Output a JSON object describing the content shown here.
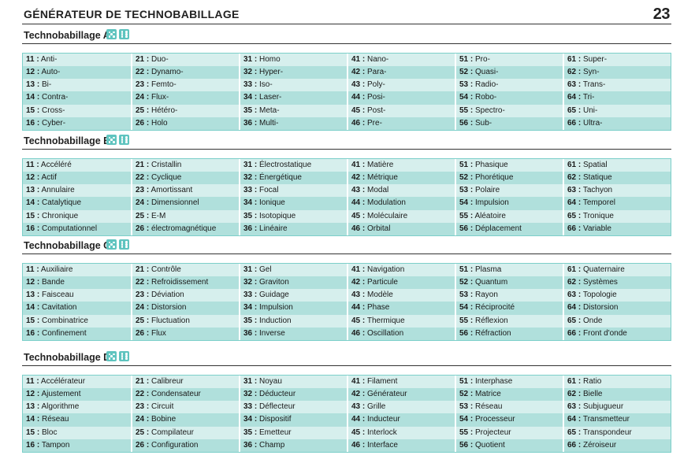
{
  "page": {
    "title": "GÉNÉRATEUR DE TECHNOBABILLAGE",
    "number": "23"
  },
  "colors": {
    "accent": "#5fc4bf",
    "row_light": "#d6efed",
    "row_dark": "#b0e0dc"
  },
  "sections": [
    {
      "title": "Technobabillage A",
      "dice_icon": "two-dice-icon",
      "columns": [
        [
          [
            "11 :",
            "Anti-"
          ],
          [
            "12 :",
            "Auto-"
          ],
          [
            "13 :",
            "Bi-"
          ],
          [
            "14 :",
            "Contra-"
          ],
          [
            "15 :",
            "Cross-"
          ],
          [
            "16 :",
            "Cyber-"
          ]
        ],
        [
          [
            "21 :",
            "Duo-"
          ],
          [
            "22 :",
            "Dynamo-"
          ],
          [
            "23 :",
            "Femto-"
          ],
          [
            "24 :",
            "Flux-"
          ],
          [
            "25 :",
            "Hétéro-"
          ],
          [
            "26 :",
            "Holo"
          ]
        ],
        [
          [
            "31 :",
            "Homo"
          ],
          [
            "32 :",
            "Hyper-"
          ],
          [
            "33 :",
            "Iso-"
          ],
          [
            "34 :",
            "Laser-"
          ],
          [
            "35 :",
            "Meta-"
          ],
          [
            "36 :",
            "Multi-"
          ]
        ],
        [
          [
            "41 :",
            "Nano-"
          ],
          [
            "42 :",
            "Para-"
          ],
          [
            "43 :",
            "Poly-"
          ],
          [
            "44 :",
            "Posi-"
          ],
          [
            "45 :",
            "Post-"
          ],
          [
            "46 :",
            "Pre-"
          ]
        ],
        [
          [
            "51 :",
            "Pro-"
          ],
          [
            "52 :",
            "Quasi-"
          ],
          [
            "53 :",
            "Radio-"
          ],
          [
            "54 :",
            "Robo-"
          ],
          [
            "55 :",
            "Spectro-"
          ],
          [
            "56 :",
            "Sub-"
          ]
        ],
        [
          [
            "61 :",
            "Super-"
          ],
          [
            "62 :",
            "Syn-"
          ],
          [
            "63 :",
            "Trans-"
          ],
          [
            "64 :",
            "Tri-"
          ],
          [
            "65 :",
            "Uni-"
          ],
          [
            "66 :",
            "Ultra-"
          ]
        ]
      ]
    },
    {
      "title": "Technobabillage B",
      "dice_icon": "two-dice-icon",
      "columns": [
        [
          [
            "11 :",
            "Accéléré"
          ],
          [
            "12 :",
            "Actif"
          ],
          [
            "13 :",
            "Annulaire"
          ],
          [
            "14 :",
            "Catalytique"
          ],
          [
            "15 :",
            "Chronique"
          ],
          [
            "16 :",
            "Computationnel"
          ]
        ],
        [
          [
            "21 :",
            "Cristallin"
          ],
          [
            "22 :",
            "Cyclique"
          ],
          [
            "23 :",
            "Amortissant"
          ],
          [
            "24 :",
            "Dimensionnel"
          ],
          [
            "25 :",
            "E-M"
          ],
          [
            "26 :",
            "électromagnétique"
          ]
        ],
        [
          [
            "31 :",
            "Électrostatique"
          ],
          [
            "32 :",
            "Énergétique"
          ],
          [
            "33 :",
            "Focal"
          ],
          [
            "34 :",
            "Ionique"
          ],
          [
            "35 :",
            "Isotopique"
          ],
          [
            "36 :",
            "Linéaire"
          ]
        ],
        [
          [
            "41 :",
            "Matière"
          ],
          [
            "42 :",
            "Métrique"
          ],
          [
            "43 :",
            "Modal"
          ],
          [
            "44 :",
            "Modulation"
          ],
          [
            "45 :",
            "Moléculaire"
          ],
          [
            "46 :",
            "Orbital"
          ]
        ],
        [
          [
            "51 :",
            "Phasique"
          ],
          [
            "52 :",
            "Phorétique"
          ],
          [
            "53 :",
            "Polaire"
          ],
          [
            "54 :",
            "Impulsion"
          ],
          [
            "55 :",
            "Aléatoire"
          ],
          [
            "56 :",
            "Déplacement"
          ]
        ],
        [
          [
            "61 :",
            "Spatial"
          ],
          [
            "62 :",
            "Statique"
          ],
          [
            "63 :",
            "Tachyon"
          ],
          [
            "64 :",
            "Temporel"
          ],
          [
            "65 :",
            "Tronique"
          ],
          [
            "66 :",
            "Variable"
          ]
        ]
      ]
    },
    {
      "title": "Technobabillage C",
      "dice_icon": "two-dice-icon",
      "columns": [
        [
          [
            "11 :",
            "Auxiliaire"
          ],
          [
            "12 :",
            "Bande"
          ],
          [
            "13 :",
            "Faisceau"
          ],
          [
            "14 :",
            "Cavitation"
          ],
          [
            "15 :",
            "Combinatrice"
          ],
          [
            "16 :",
            "Confinement"
          ]
        ],
        [
          [
            "21 :",
            "Contrôle"
          ],
          [
            "22 :",
            "Refroidissement"
          ],
          [
            "23 :",
            "Déviation"
          ],
          [
            "24 :",
            "Distorsion"
          ],
          [
            "25 :",
            "Fluctuation"
          ],
          [
            "26 :",
            "Flux"
          ]
        ],
        [
          [
            "31 :",
            "Gel"
          ],
          [
            "32 :",
            "Graviton"
          ],
          [
            "33 :",
            "Guidage"
          ],
          [
            "34 :",
            "Impulsion"
          ],
          [
            "35 :",
            "Induction"
          ],
          [
            "36 :",
            "Inverse"
          ]
        ],
        [
          [
            "41 :",
            "Navigation"
          ],
          [
            "42 :",
            "Particule"
          ],
          [
            "43 :",
            "Modèle"
          ],
          [
            "44 :",
            "Phase"
          ],
          [
            "45 :",
            "Thermique"
          ],
          [
            "46 :",
            "Oscillation"
          ]
        ],
        [
          [
            "51 :",
            "Plasma"
          ],
          [
            "52 :",
            "Quantum"
          ],
          [
            "53 :",
            "Rayon"
          ],
          [
            "54 :",
            "Réciprocité"
          ],
          [
            "55 :",
            "Réflexion"
          ],
          [
            "56 :",
            "Réfraction"
          ]
        ],
        [
          [
            "61 :",
            "Quaternaire"
          ],
          [
            "62 :",
            "Systèmes"
          ],
          [
            "63 :",
            "Topologie"
          ],
          [
            "64 :",
            "Distorsion"
          ],
          [
            "65 :",
            "Onde"
          ],
          [
            "66 :",
            "Front d'onde"
          ]
        ]
      ]
    },
    {
      "title": "Technobabillage D",
      "dice_icon": "two-dice-icon",
      "columns": [
        [
          [
            "11 :",
            "Accélérateur"
          ],
          [
            "12 :",
            "Ajustement"
          ],
          [
            "13 :",
            "Algorithme"
          ],
          [
            "14 :",
            "Réseau"
          ],
          [
            "15 :",
            "Bloc"
          ],
          [
            "16 :",
            "Tampon"
          ]
        ],
        [
          [
            "21 :",
            "Calibreur"
          ],
          [
            "22 :",
            "Condensateur"
          ],
          [
            "23 :",
            "Circuit"
          ],
          [
            "24 :",
            "Bobine"
          ],
          [
            "25 :",
            "Compilateur"
          ],
          [
            "26 :",
            "Configuration"
          ]
        ],
        [
          [
            "31 :",
            "Noyau"
          ],
          [
            "32 :",
            "Déducteur"
          ],
          [
            "33 :",
            "Déflecteur"
          ],
          [
            "34 :",
            "Dispositif"
          ],
          [
            "35 :",
            "Emetteur"
          ],
          [
            "36 :",
            "Champ"
          ]
        ],
        [
          [
            "41 :",
            "Filament"
          ],
          [
            "42 :",
            "Générateur"
          ],
          [
            "43 :",
            "Grille"
          ],
          [
            "44 :",
            "Inducteur"
          ],
          [
            "45 :",
            "Interlock"
          ],
          [
            "46 :",
            "Interface"
          ]
        ],
        [
          [
            "51 :",
            "Interphase"
          ],
          [
            "52 :",
            "Matrice"
          ],
          [
            "53 :",
            "Réseau"
          ],
          [
            "54 :",
            "Processeur"
          ],
          [
            "55 :",
            "Projecteur"
          ],
          [
            "56 :",
            "Quotient"
          ]
        ],
        [
          [
            "61 :",
            "Ratio"
          ],
          [
            "62 :",
            "Bielle"
          ],
          [
            "63 :",
            "Subjugueur"
          ],
          [
            "64 :",
            "Transmetteur"
          ],
          [
            "65 :",
            "Transpondeur"
          ],
          [
            "66 :",
            "Zéroiseur"
          ]
        ]
      ]
    }
  ]
}
